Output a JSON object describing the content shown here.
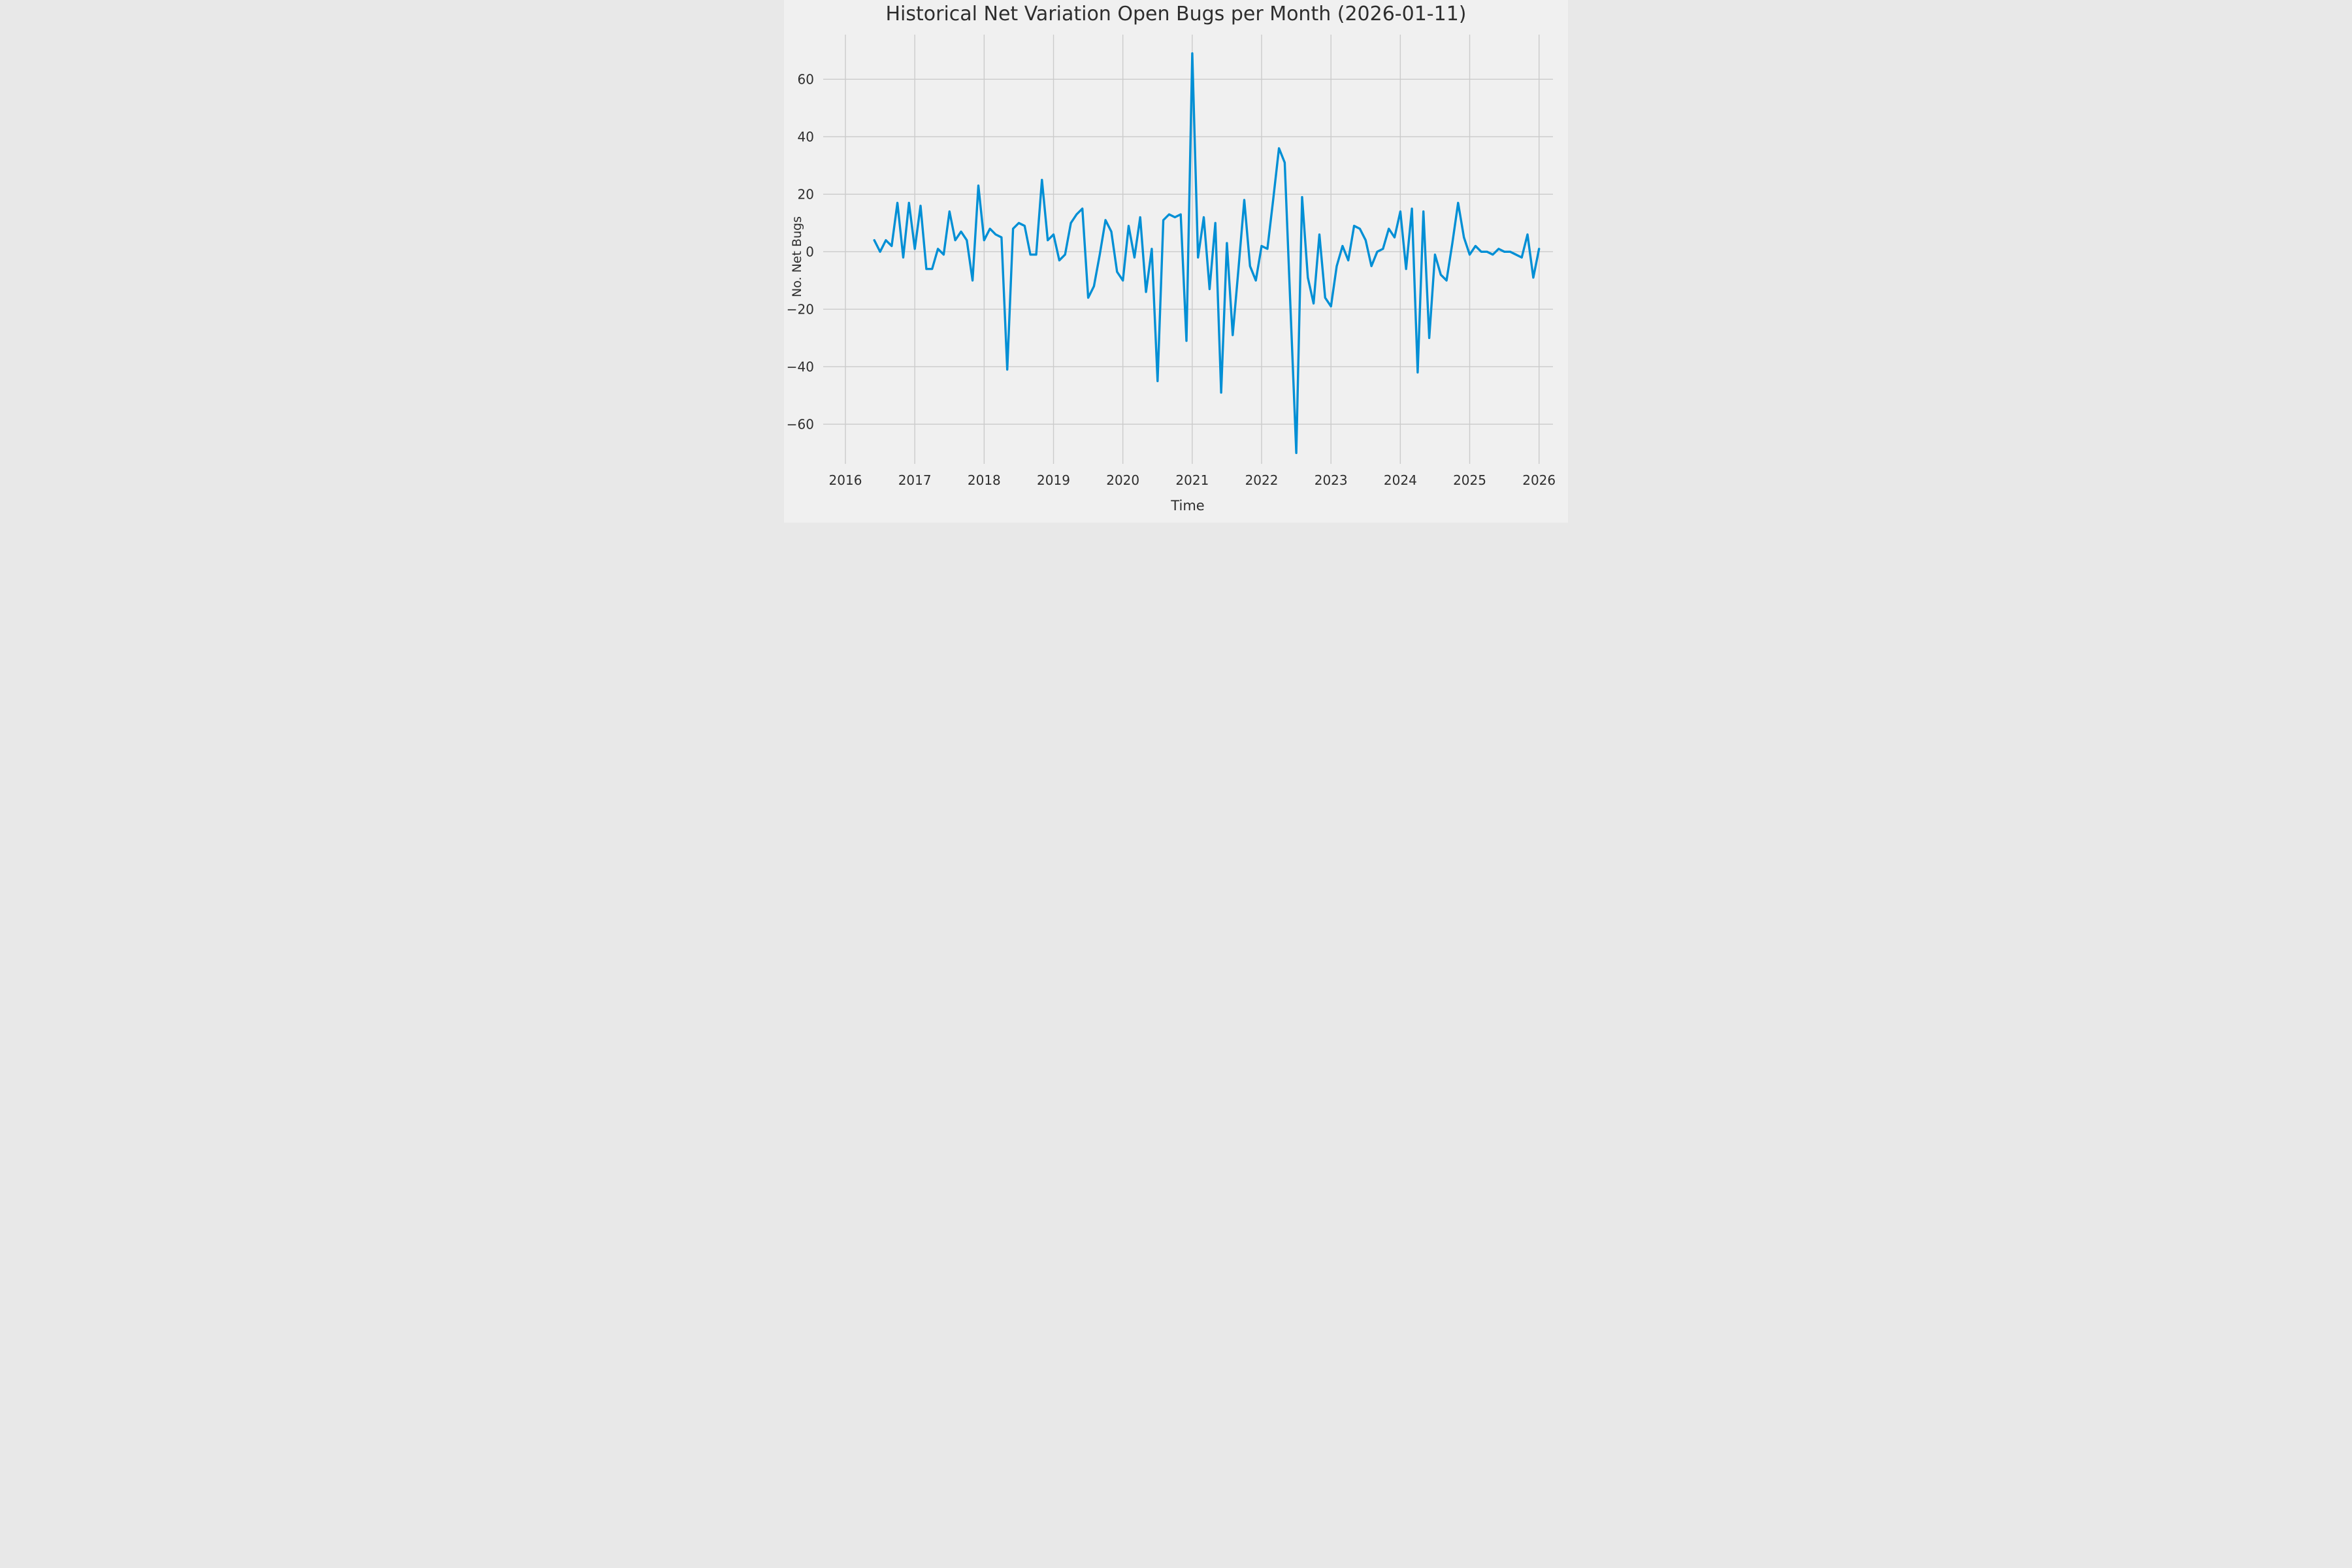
{
  "title": "Historical Net Variation Open Bugs per Month (2026-01-11)",
  "chart_data": {
    "type": "line",
    "title": "Historical Net Variation Open Bugs per Month (2026-01-11)",
    "xlabel": "Time",
    "ylabel": "No. Net Bugs",
    "x_tick_labels": [
      "2016",
      "2017",
      "2018",
      "2019",
      "2020",
      "2021",
      "2022",
      "2023",
      "2024",
      "2025",
      "2026"
    ],
    "y_tick_labels": [
      "60",
      "40",
      "20",
      "0",
      "−20",
      "−40",
      "−60"
    ],
    "y_ticks": [
      60,
      40,
      20,
      0,
      -20,
      -40,
      -60
    ],
    "ylim": [
      -74,
      76
    ],
    "xlim_years": [
      2015.85,
      2026.22
    ],
    "grid": true,
    "legend": false,
    "start_month": "2016-06",
    "cadence": "monthly",
    "end_month": "2026-01",
    "series": [
      {
        "name": "net_open_bugs",
        "color": "#008fd5",
        "values": [
          4,
          0,
          4,
          2,
          17,
          -2,
          17,
          1,
          16,
          -6,
          -6,
          1,
          -1,
          14,
          4,
          7,
          4,
          -10,
          23,
          4,
          8,
          6,
          5,
          -41,
          8,
          10,
          9,
          -1,
          -1,
          25,
          4,
          6,
          -3,
          -1,
          10,
          13,
          15,
          -16,
          -12,
          -1,
          11,
          7,
          -7,
          -10,
          9,
          -2,
          12,
          -14,
          1,
          -45,
          11,
          13,
          12,
          13,
          -31,
          69,
          -2,
          12,
          -13,
          10,
          -49,
          3,
          -29,
          -6,
          18,
          -5,
          -10,
          2,
          1,
          18,
          36,
          31,
          -20,
          -70,
          19,
          -9,
          -18,
          6,
          -16,
          -19,
          -5,
          2,
          -3,
          9,
          8,
          4,
          -5,
          0,
          1,
          8,
          5,
          14,
          -6,
          15,
          -42,
          14,
          -30,
          -1,
          -8,
          -10,
          3,
          17,
          5,
          -1,
          2,
          0,
          0,
          -1,
          1,
          0,
          0,
          -1,
          -2,
          6,
          -9,
          1
        ]
      }
    ],
    "style": {
      "background": "#f0f0f0",
      "grid_color": "#cbcbcb",
      "text_color": "#2e2e2e",
      "line_width": 3.4
    }
  }
}
